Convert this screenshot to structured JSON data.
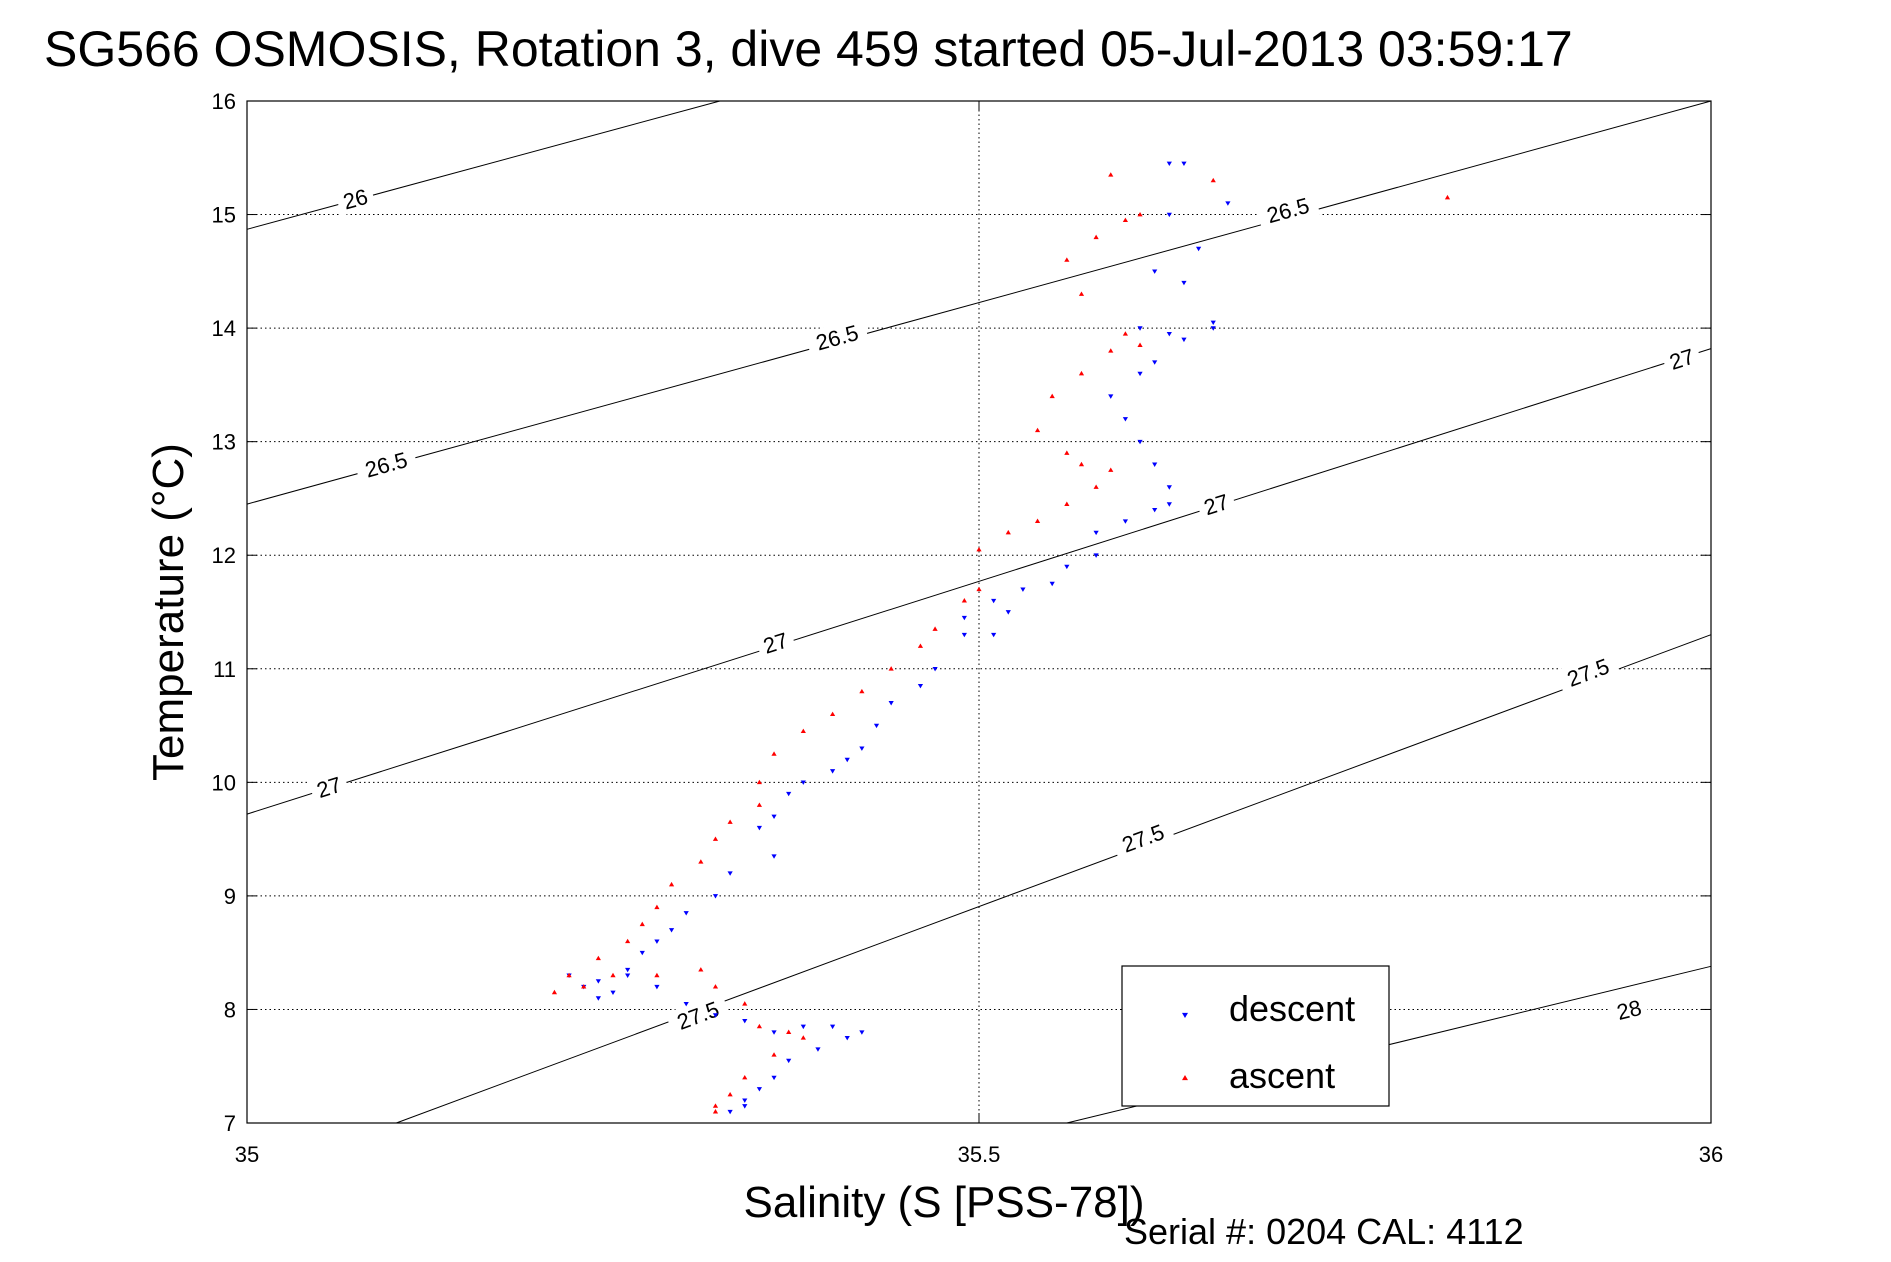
{
  "chart_data": {
    "type": "scatter",
    "title": "SG566 OSMOSIS, Rotation 3, dive 459 started 05-Jul-2013 03:59:17",
    "xlabel": "Salinity (S [PSS-78])",
    "ylabel": "Temperature (°C)",
    "xlim": [
      35,
      36
    ],
    "ylim": [
      7,
      16
    ],
    "x_ticks": [
      "35",
      "35.5",
      "36"
    ],
    "y_ticks": [
      "7",
      "8",
      "9",
      "10",
      "11",
      "12",
      "13",
      "14",
      "15",
      "16"
    ],
    "x_tick_values": [
      35,
      35.5,
      36
    ],
    "y_tick_values": [
      7,
      8,
      9,
      10,
      11,
      12,
      13,
      14,
      15,
      16
    ],
    "grid": true,
    "legend_position": "bottom-right",
    "footer": "Serial #: 0204  CAL: 4112",
    "density_contours": [
      {
        "label": "26",
        "points": [
          [
            35.0,
            14.87
          ],
          [
            35.323,
            16.0
          ]
        ],
        "label_positions": [
          [
            35.074,
            15.14
          ]
        ]
      },
      {
        "label": "26.5",
        "points": [
          [
            35.0,
            12.45
          ],
          [
            36.0,
            16.0
          ]
        ],
        "label_positions": [
          [
            35.095,
            12.8
          ],
          [
            35.403,
            13.92
          ],
          [
            35.711,
            15.04
          ]
        ]
      },
      {
        "label": "27",
        "points": [
          [
            35.0,
            9.72
          ],
          [
            36.0,
            13.82
          ]
        ],
        "label_positions": [
          [
            35.056,
            9.96
          ],
          [
            35.361,
            11.23
          ],
          [
            35.662,
            12.45
          ],
          [
            35.98,
            13.73
          ]
        ]
      },
      {
        "label": "27.5",
        "points": [
          [
            35.102,
            7.0
          ],
          [
            36.0,
            11.3
          ]
        ],
        "label_positions": [
          [
            35.308,
            7.95
          ],
          [
            35.612,
            9.51
          ],
          [
            35.916,
            10.97
          ]
        ]
      },
      {
        "label": "28",
        "points": [
          [
            35.56,
            7.0
          ],
          [
            36.0,
            8.38
          ]
        ],
        "label_positions": [
          [
            35.944,
            8.0
          ]
        ]
      }
    ],
    "series": [
      {
        "name": "descent",
        "color": "#0000ff",
        "marker": "triangle-down",
        "x": [
          35.63,
          35.64,
          35.63,
          35.67,
          35.62,
          35.61,
          35.65,
          35.64,
          35.66,
          35.66,
          35.63,
          35.64,
          35.62,
          35.61,
          35.59,
          35.6,
          35.61,
          35.62,
          35.63,
          35.63,
          35.62,
          35.6,
          35.58,
          35.58,
          35.56,
          35.55,
          35.53,
          35.51,
          35.49,
          35.52,
          35.51,
          35.49,
          35.47,
          35.46,
          35.44,
          35.43,
          35.42,
          35.41,
          35.4,
          35.38,
          35.37,
          35.36,
          35.35,
          35.36,
          35.33,
          35.32,
          35.3,
          35.29,
          35.28,
          35.27,
          35.26,
          35.25,
          35.24,
          35.23,
          35.22,
          35.24,
          35.26,
          35.28,
          35.3,
          35.32,
          35.34,
          35.36,
          35.38,
          35.4,
          35.42,
          35.41,
          35.39,
          35.37,
          35.36,
          35.35,
          35.34,
          35.34,
          35.33
        ],
        "y": [
          15.45,
          15.45,
          15.0,
          15.1,
          14.5,
          14.0,
          14.7,
          14.4,
          14.0,
          14.05,
          13.95,
          13.9,
          13.7,
          13.6,
          13.4,
          13.2,
          13.0,
          12.8,
          12.6,
          12.45,
          12.4,
          12.3,
          12.2,
          12.0,
          11.9,
          11.75,
          11.7,
          11.6,
          11.45,
          11.5,
          11.3,
          11.3,
          11.0,
          10.85,
          10.7,
          10.5,
          10.3,
          10.2,
          10.1,
          10.0,
          9.9,
          9.7,
          9.6,
          9.35,
          9.2,
          9.0,
          8.85,
          8.7,
          8.6,
          8.5,
          8.3,
          8.15,
          8.1,
          8.2,
          8.3,
          8.25,
          8.35,
          8.2,
          8.05,
          7.95,
          7.9,
          7.8,
          7.85,
          7.85,
          7.8,
          7.75,
          7.65,
          7.55,
          7.4,
          7.3,
          7.2,
          7.15,
          7.1
        ]
      },
      {
        "name": "ascent",
        "color": "#ff0000",
        "marker": "triangle-up",
        "x": [
          35.59,
          35.61,
          35.6,
          35.58,
          35.56,
          35.57,
          35.6,
          35.61,
          35.59,
          35.57,
          35.55,
          35.54,
          35.56,
          35.57,
          35.59,
          35.58,
          35.56,
          35.54,
          35.52,
          35.5,
          35.5,
          35.49,
          35.47,
          35.46,
          35.44,
          35.42,
          35.4,
          35.38,
          35.36,
          35.35,
          35.35,
          35.33,
          35.32,
          35.31,
          35.29,
          35.28,
          35.27,
          35.26,
          35.24,
          35.22,
          35.21,
          35.23,
          35.25,
          35.28,
          35.31,
          35.32,
          35.34,
          35.35,
          35.37,
          35.38,
          35.36,
          35.34,
          35.33,
          35.32,
          35.32,
          35.82,
          35.66
        ],
        "y": [
          15.35,
          15.0,
          14.95,
          14.8,
          14.6,
          14.3,
          13.95,
          13.85,
          13.8,
          13.6,
          13.4,
          13.1,
          12.9,
          12.8,
          12.75,
          12.6,
          12.45,
          12.3,
          12.2,
          12.05,
          11.7,
          11.6,
          11.35,
          11.2,
          11.0,
          10.8,
          10.6,
          10.45,
          10.25,
          10.0,
          9.8,
          9.65,
          9.5,
          9.3,
          9.1,
          8.9,
          8.75,
          8.6,
          8.45,
          8.3,
          8.15,
          8.2,
          8.3,
          8.3,
          8.35,
          8.2,
          8.05,
          7.85,
          7.8,
          7.75,
          7.6,
          7.4,
          7.25,
          7.15,
          7.1,
          15.15,
          15.3
        ]
      }
    ]
  }
}
